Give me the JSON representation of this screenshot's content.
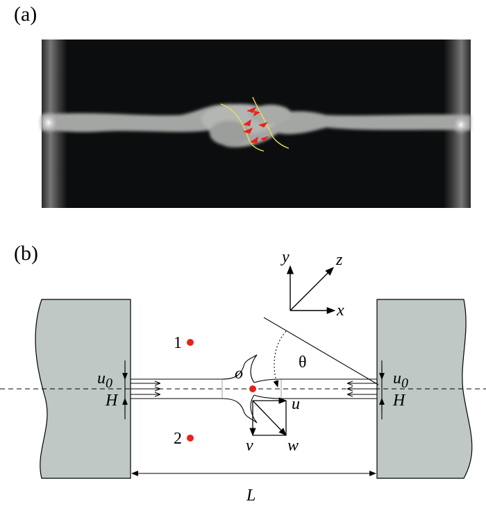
{
  "panel_a": {
    "label": "(a)"
  },
  "panel_b": {
    "label": "(b)",
    "axes": {
      "x": "x",
      "y": "y",
      "z": "z"
    },
    "symbols": {
      "u0_left": "u",
      "u0_left_sub": "0",
      "u0_right": "u",
      "u0_right_sub": "0",
      "H_left": "H",
      "H_right": "H",
      "origin": "o",
      "theta": "θ",
      "u": "u",
      "v": "v",
      "w": "w",
      "L": "L",
      "point1": "1",
      "point2": "2"
    },
    "colors": {
      "wall": "#bfc8c4",
      "point": "#e8231b",
      "arrow": "#e8231b",
      "curve": "#e6e05a"
    }
  }
}
